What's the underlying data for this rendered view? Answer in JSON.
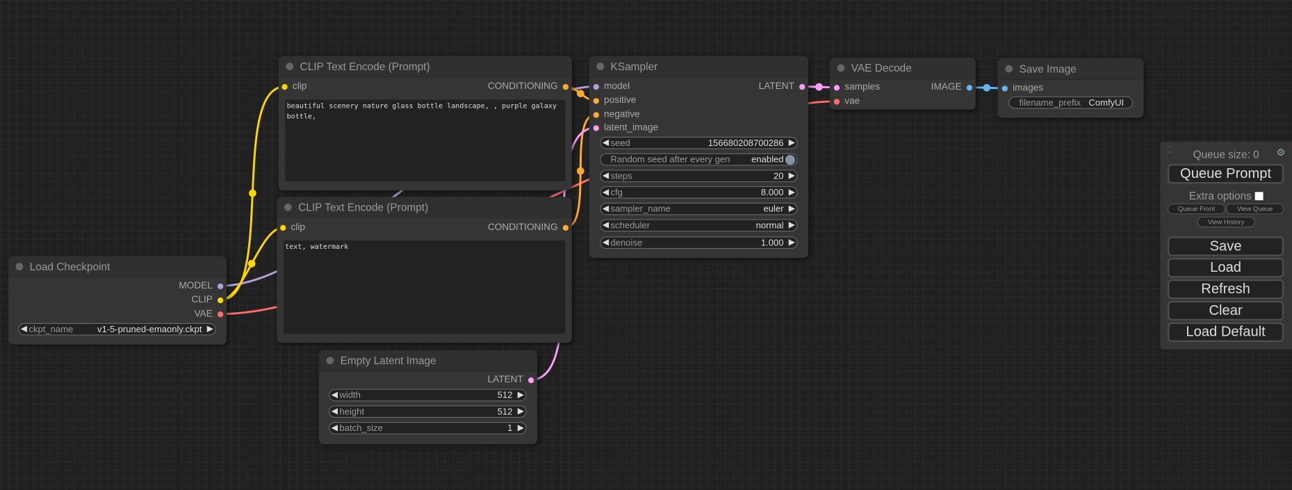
{
  "colors": {
    "model": "#b39ddb",
    "clip": "#ffd500",
    "conditioning": "#ffa931",
    "latent": "#ff9cf9",
    "vae": "#ff6e6e",
    "image": "#64b5f6"
  },
  "load_checkpoint": {
    "title": "Load Checkpoint",
    "outputs": [
      "MODEL",
      "CLIP",
      "VAE"
    ],
    "ckpt_label": "ckpt_name",
    "ckpt_value": "v1-5-pruned-emaonly.ckpt"
  },
  "clip_pos": {
    "title": "CLIP Text Encode (Prompt)",
    "input": "clip",
    "output": "CONDITIONING",
    "text": "beautiful scenery nature glass bottle landscape, , purple galaxy bottle,"
  },
  "clip_neg": {
    "title": "CLIP Text Encode (Prompt)",
    "input": "clip",
    "output": "CONDITIONING",
    "text": "text, watermark"
  },
  "empty_latent": {
    "title": "Empty Latent Image",
    "output": "LATENT",
    "widgets": [
      {
        "label": "width",
        "value": "512"
      },
      {
        "label": "height",
        "value": "512"
      },
      {
        "label": "batch_size",
        "value": "1"
      }
    ]
  },
  "ksampler": {
    "title": "KSampler",
    "inputs": [
      "model",
      "positive",
      "negative",
      "latent_image"
    ],
    "output": "LATENT",
    "seed_label": "seed",
    "seed_value": "156680208700286",
    "toggle_label": "Random seed after every gen",
    "toggle_value": "enabled",
    "widgets": [
      {
        "label": "steps",
        "value": "20"
      },
      {
        "label": "cfg",
        "value": "8.000"
      },
      {
        "label": "sampler_name",
        "value": "euler"
      },
      {
        "label": "scheduler",
        "value": "normal"
      },
      {
        "label": "denoise",
        "value": "1.000"
      }
    ]
  },
  "vae_decode": {
    "title": "VAE Decode",
    "inputs": [
      "samples",
      "vae"
    ],
    "output": "IMAGE"
  },
  "save_image": {
    "title": "Save Image",
    "input": "images",
    "prefix_label": "filename_prefix",
    "prefix_value": "ComfyUI"
  },
  "menu": {
    "queue_size": "Queue size: 0",
    "queue_prompt": "Queue Prompt",
    "extra_options": "Extra options",
    "queue_front": "Queue Front",
    "view_queue": "View Queue",
    "view_history": "View History",
    "save": "Save",
    "load": "Load",
    "refresh": "Refresh",
    "clear": "Clear",
    "load_default": "Load Default"
  }
}
